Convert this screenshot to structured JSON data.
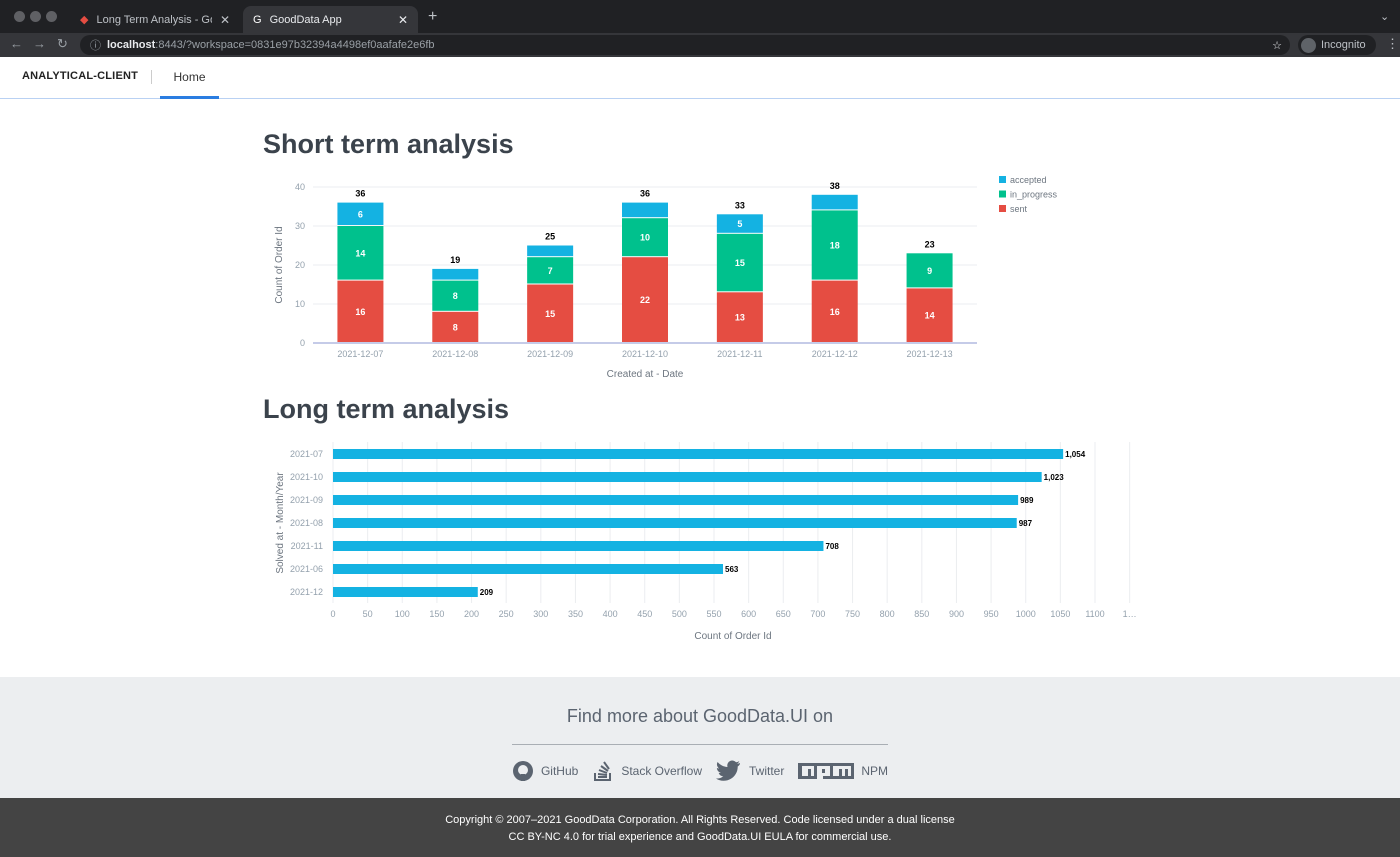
{
  "browser": {
    "tabs": [
      {
        "title": "Long Term Analysis - GoodDat",
        "active": false
      },
      {
        "title": "GoodData App",
        "active": true
      }
    ],
    "url_host": "localhost",
    "url_rest": ":8443/?workspace=0831e97b32394a4498ef0aafafe2e6fb",
    "profile": "Incognito"
  },
  "app": {
    "brand": "ANALYTICAL-CLIENT",
    "nav": [
      {
        "label": "Home",
        "active": true
      }
    ]
  },
  "sections": {
    "short_title": "Short term analysis",
    "long_title": "Long term analysis"
  },
  "chart_data": [
    {
      "type": "bar",
      "stacked": true,
      "categories": [
        "2021-12-07",
        "2021-12-08",
        "2021-12-09",
        "2021-12-10",
        "2021-12-11",
        "2021-12-12",
        "2021-12-13"
      ],
      "series": [
        {
          "name": "sent",
          "color": "#e54d42",
          "values": [
            16,
            8,
            15,
            22,
            13,
            16,
            14
          ]
        },
        {
          "name": "in_progress",
          "color": "#00c18d",
          "values": [
            14,
            8,
            7,
            10,
            15,
            18,
            9
          ]
        },
        {
          "name": "accepted",
          "color": "#14b2e2",
          "values": [
            6,
            3,
            3,
            4,
            5,
            4,
            0
          ]
        }
      ],
      "totals": [
        36,
        19,
        25,
        36,
        33,
        38,
        23
      ],
      "legend_order": [
        "accepted",
        "in_progress",
        "sent"
      ],
      "xlabel": "Created at - Date",
      "ylabel": "Count of Order Id",
      "ylim": [
        0,
        40
      ],
      "yticks": [
        0,
        10,
        20,
        30,
        40
      ],
      "grid": true,
      "legend": "right"
    },
    {
      "type": "bar",
      "orientation": "horizontal",
      "categories": [
        "2021-07",
        "2021-10",
        "2021-09",
        "2021-08",
        "2021-11",
        "2021-06",
        "2021-12"
      ],
      "values": [
        1054,
        1023,
        989,
        987,
        708,
        563,
        209
      ],
      "value_labels": [
        "1,054",
        "1,023",
        "989",
        "987",
        "708",
        "563",
        "209"
      ],
      "color": "#14b2e2",
      "xlabel": "Count of Order Id",
      "ylabel": "Solved at - Month/Year",
      "xlim": [
        0,
        1150
      ],
      "xticks": [
        "0",
        "50",
        "100",
        "150",
        "200",
        "250",
        "300",
        "350",
        "400",
        "450",
        "500",
        "550",
        "600",
        "650",
        "700",
        "750",
        "800",
        "850",
        "900",
        "950",
        "1000",
        "1050",
        "1100",
        "1…"
      ],
      "grid": true
    }
  ],
  "footer": {
    "heading": "Find more about GoodData.UI on",
    "links": [
      {
        "label": "GitHub",
        "icon": "github-icon"
      },
      {
        "label": "Stack Overflow",
        "icon": "stackoverflow-icon"
      },
      {
        "label": "Twitter",
        "icon": "twitter-icon"
      },
      {
        "label": "NPM",
        "icon": "npm-icon"
      }
    ],
    "copyright_line1": "Copyright © 2007–2021 GoodData Corporation. All Rights Reserved. Code licensed under a dual license",
    "copyright_line2": "CC BY-NC 4.0 for trial experience and GoodData.UI EULA for commercial use."
  }
}
